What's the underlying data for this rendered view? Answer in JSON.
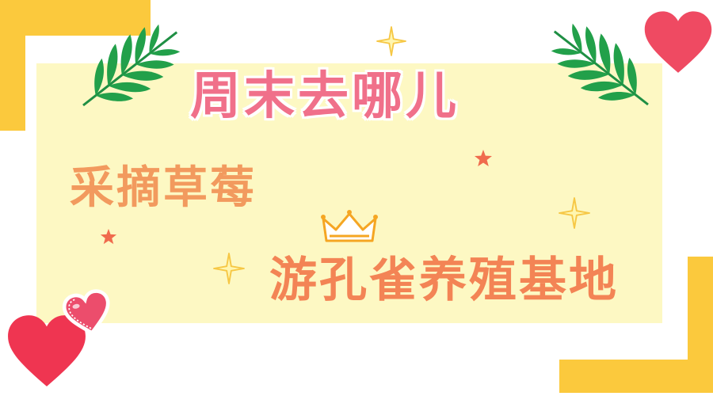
{
  "title": "周末去哪儿",
  "lines": [
    "采摘草莓",
    "游孔雀养殖基地"
  ],
  "colors": {
    "panel": "#fdf8c3",
    "corner": "#fbc93d",
    "title": "#f0708a",
    "text": "#f29a5e",
    "heart": "#ef4a62",
    "leaf": "#22a04a",
    "star": "#f06b4d",
    "sparkle": "#f6c744",
    "crown": "#f5a623"
  },
  "icons": [
    "heart-icon",
    "leaf-icon",
    "sparkle-icon",
    "star-icon",
    "crown-icon"
  ]
}
